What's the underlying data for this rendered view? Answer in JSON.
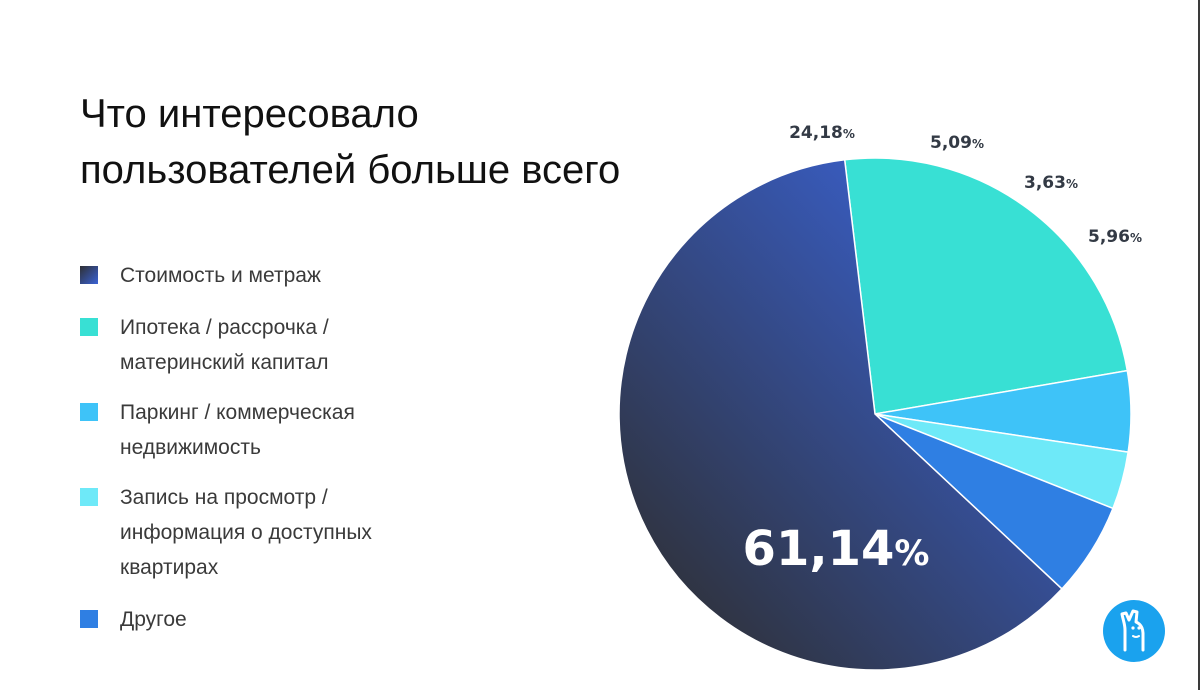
{
  "title_lines": [
    "Что интересовало",
    "пользователей больше всего"
  ],
  "chart_data": {
    "type": "pie",
    "title": "Что интересовало пользователей больше всего",
    "legend_position": "left",
    "series": [
      {
        "name": "",
        "values": [
          {
            "label": "Стоимость и метраж",
            "value": 61.14,
            "display": "61,14",
            "color": "#2f3a55"
          },
          {
            "label": "Ипотека / рассрочка /\nматеринский капитал",
            "value": 24.18,
            "display": "24,18",
            "color": "#38e0d4"
          },
          {
            "label": "Паркинг / коммерческая\nнедвижимость",
            "value": 5.09,
            "display": "5,09",
            "color": "#3ec3f8"
          },
          {
            "label": "Запись на просмотр /\nинформация о доступных\nквартирах",
            "value": 3.63,
            "display": "3,63",
            "color": "#6ee9f8"
          },
          {
            "label": "Другое",
            "value": 5.96,
            "display": "5,96",
            "color": "#2f7fe3"
          }
        ]
      }
    ],
    "percent_sign": "%"
  },
  "logo_icon": "llama-icon",
  "colors": {
    "dark_gradient_start": "#2e2f33",
    "dark_gradient_end": "#3a63d6",
    "logo_blue": "#1aa2ee"
  }
}
